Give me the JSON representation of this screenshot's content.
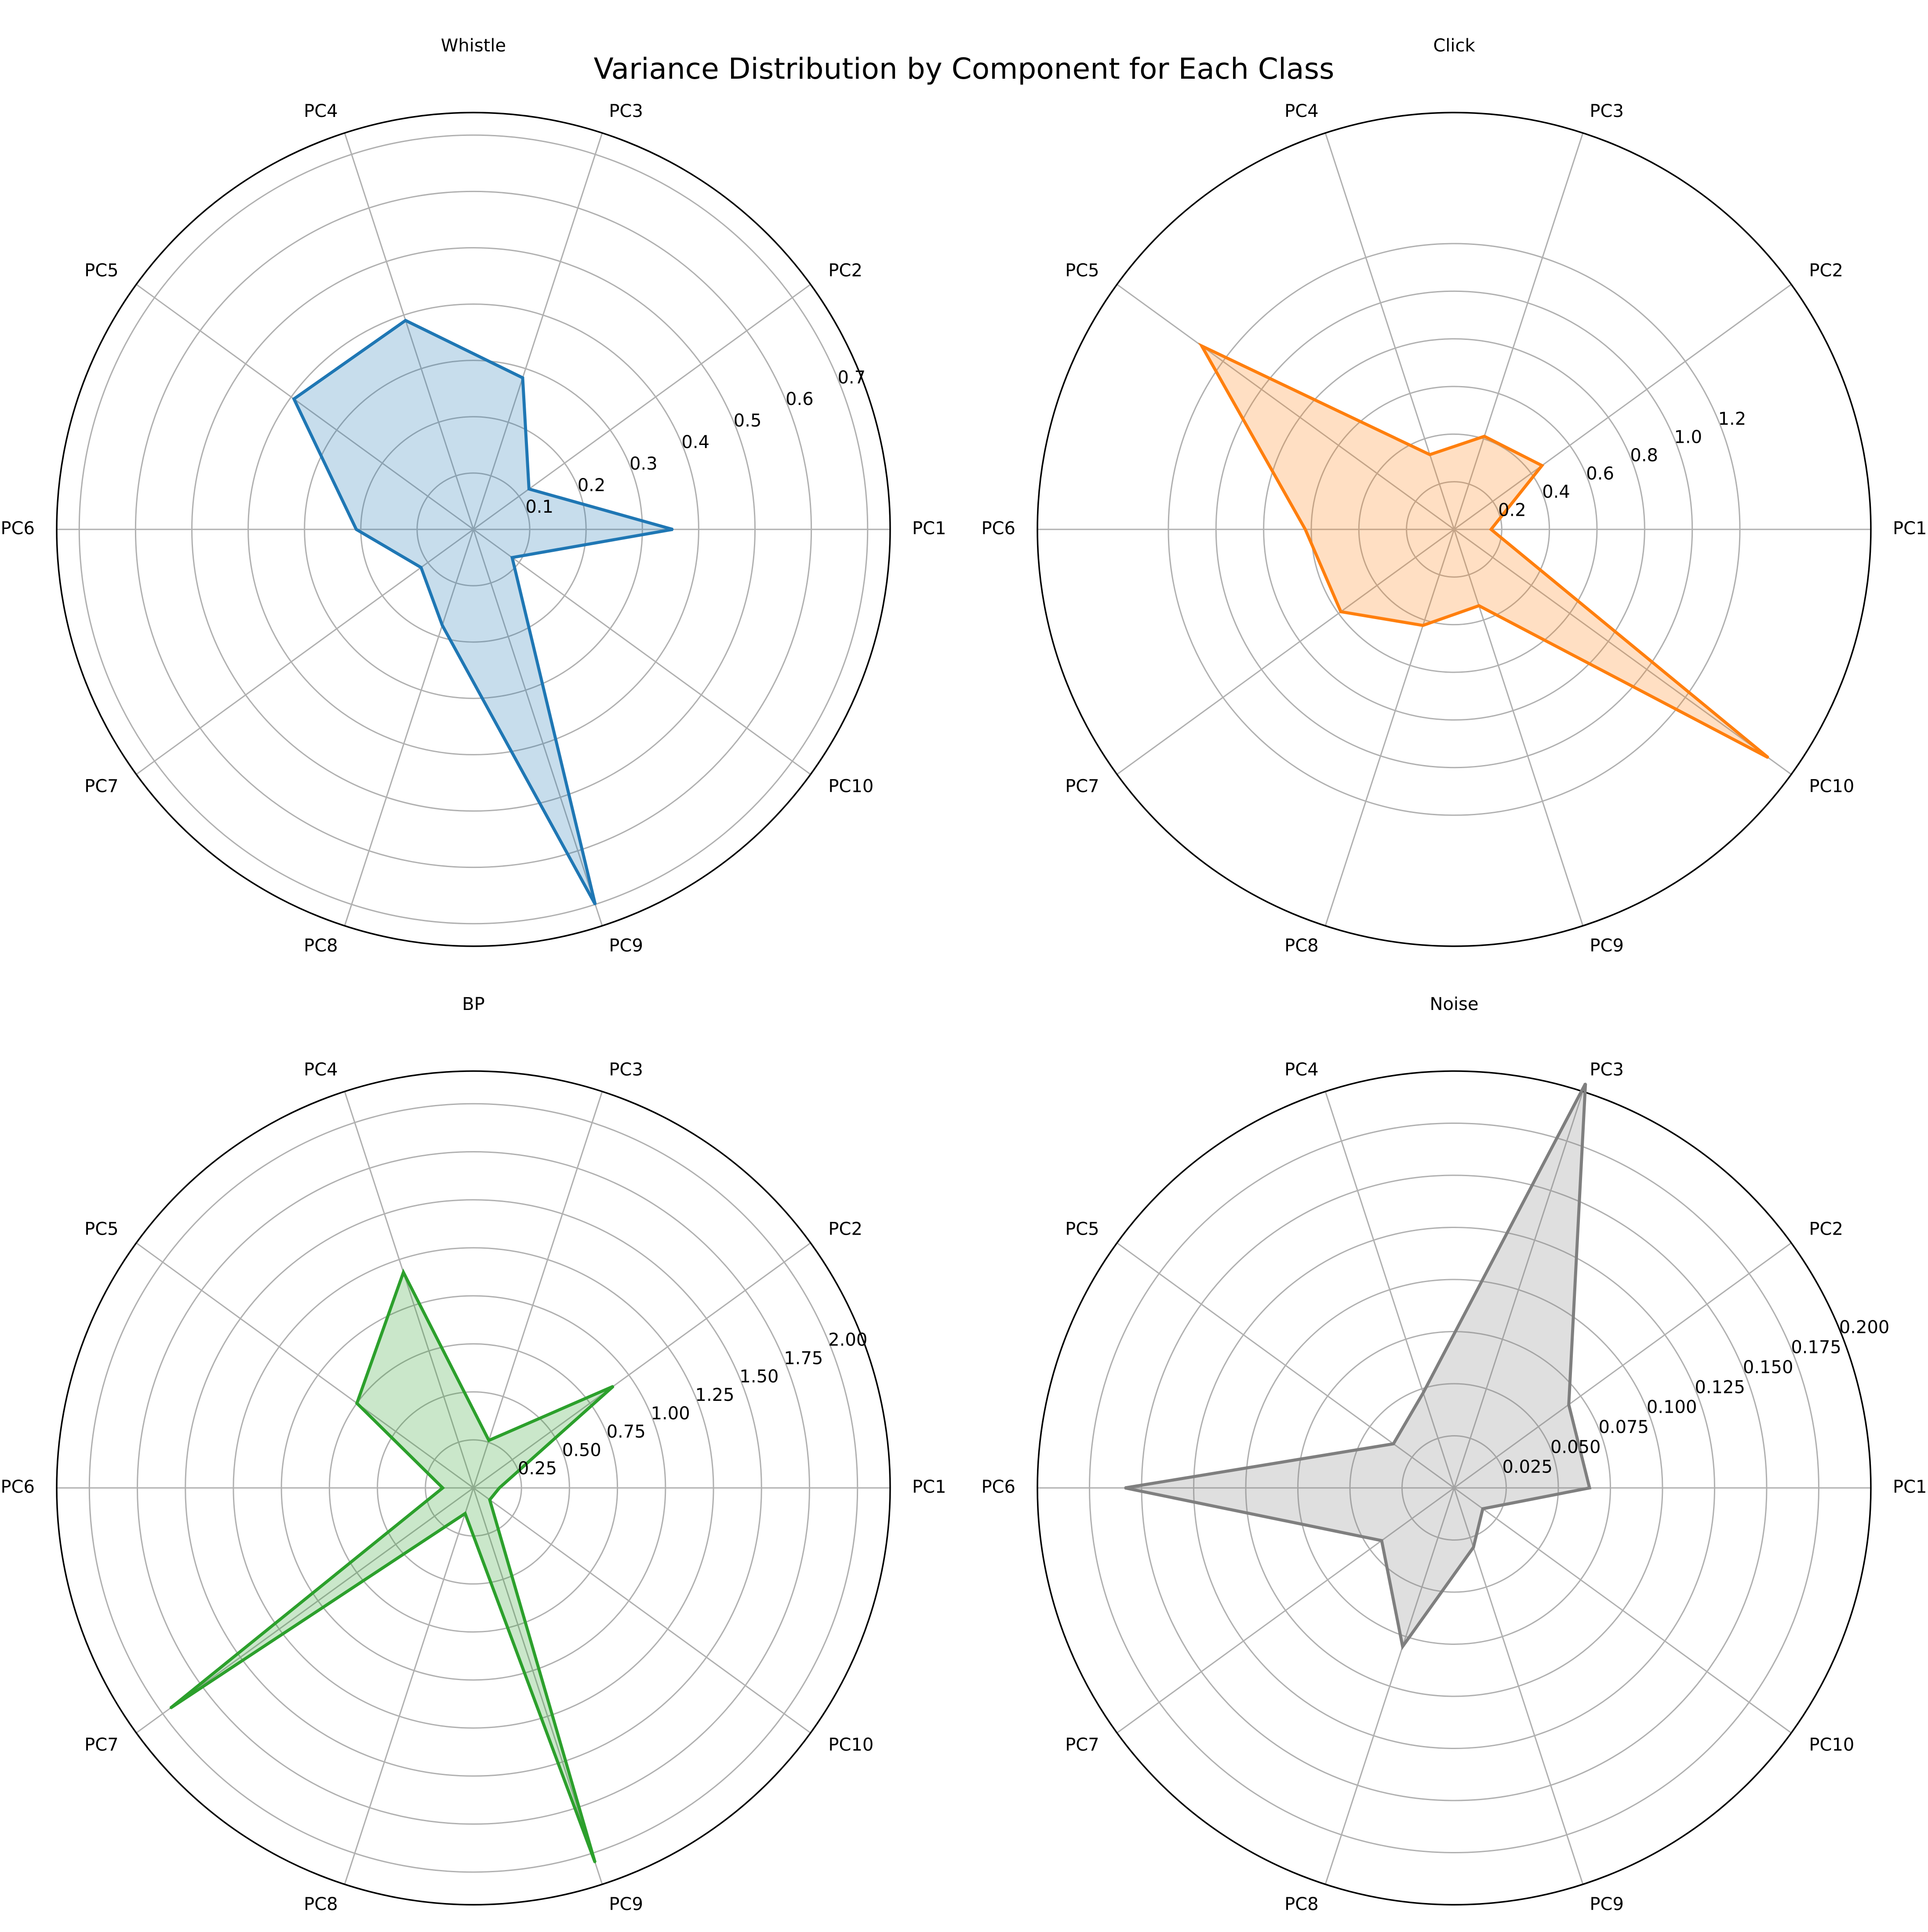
{
  "figure": {
    "title": "Variance Distribution by Component for Each Class"
  },
  "chart_data": [
    {
      "type": "radar",
      "title": "Whistle",
      "color": "#1f77b4",
      "categories": [
        "PC1",
        "PC2",
        "PC3",
        "PC4",
        "PC5",
        "PC6",
        "PC7",
        "PC8",
        "PC9",
        "PC10"
      ],
      "values": [
        0.354,
        0.122,
        0.283,
        0.39,
        0.394,
        0.208,
        0.115,
        0.179,
        0.7,
        0.085
      ],
      "rmax": 0.74,
      "rticks": [
        0.1,
        0.2,
        0.3,
        0.4,
        0.5,
        0.6,
        0.7
      ],
      "rtick_labels": [
        "0.1",
        "0.2",
        "0.3",
        "0.4",
        "0.5",
        "0.6",
        "0.7"
      ],
      "grid": true
    },
    {
      "type": "radar",
      "title": "Click",
      "color": "#ff7f0e",
      "categories": [
        "PC1",
        "PC2",
        "PC3",
        "PC4",
        "PC5",
        "PC6",
        "PC7",
        "PC8",
        "PC9",
        "PC10"
      ],
      "values": [
        0.155,
        0.456,
        0.411,
        0.33,
        1.31,
        0.625,
        0.588,
        0.424,
        0.337,
        1.63
      ],
      "rmax": 1.75,
      "rticks": [
        0.2,
        0.4,
        0.6,
        0.8,
        1.0,
        1.2
      ],
      "rtick_labels": [
        "0.2",
        "0.4",
        "0.6",
        "0.8",
        "1.0",
        "1.2"
      ],
      "grid": true
    },
    {
      "type": "radar",
      "title": "BP",
      "color": "#2ca02c",
      "categories": [
        "PC1",
        "PC2",
        "PC3",
        "PC4",
        "PC5",
        "PC6",
        "PC7",
        "PC8",
        "PC9",
        "PC10"
      ],
      "values": [
        0.135,
        0.9,
        0.26,
        1.18,
        0.75,
        0.16,
        1.95,
        0.14,
        2.05,
        0.105
      ],
      "rmax": 2.17,
      "rticks": [
        0.25,
        0.5,
        0.75,
        1.0,
        1.25,
        1.5,
        1.75,
        2.0
      ],
      "rtick_labels": [
        "0.25",
        "0.50",
        "0.75",
        "1.00",
        "1.25",
        "1.50",
        "1.75",
        "2.00"
      ],
      "grid": true
    },
    {
      "type": "radar",
      "title": "Noise",
      "color": "#7f7f7f",
      "categories": [
        "PC1",
        "PC2",
        "PC3",
        "PC4",
        "PC5",
        "PC6",
        "PC7",
        "PC8",
        "PC9",
        "PC10"
      ],
      "values": [
        0.065,
        0.068,
        0.204,
        0.048,
        0.036,
        0.158,
        0.043,
        0.08,
        0.03,
        0.017
      ],
      "rmax": 0.2,
      "rticks": [
        0.025,
        0.05,
        0.075,
        0.1,
        0.125,
        0.15,
        0.175,
        0.2
      ],
      "rtick_labels": [
        "0.025",
        "0.050",
        "0.075",
        "0.100",
        "0.125",
        "0.150",
        "0.175",
        "0.200"
      ],
      "grid": true
    }
  ]
}
